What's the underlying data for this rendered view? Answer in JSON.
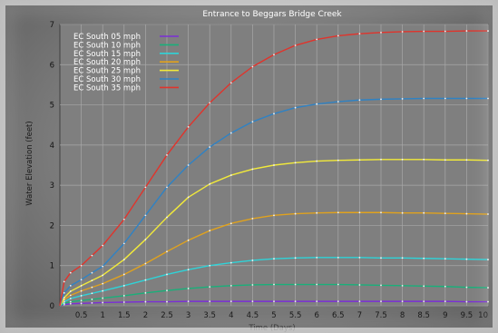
{
  "chart_data": {
    "type": "line",
    "title": "Entrance to Beggars Bridge Creek",
    "xlabel": "Time (Days)",
    "ylabel": "Water Elevation (feet)",
    "xlim": [
      0,
      10
    ],
    "ylim": [
      0,
      7
    ],
    "x_ticks": [
      "0.5",
      "1",
      "1.5",
      "2",
      "2.5",
      "3",
      "3.5",
      "4",
      "4.5",
      "5",
      "5.5",
      "6",
      "6.5",
      "7",
      "7.5",
      "8",
      "8.5",
      "9",
      "9.5",
      "10"
    ],
    "y_ticks": [
      "0",
      "1",
      "2",
      "3",
      "4",
      "5",
      "6",
      "7"
    ],
    "grid": true,
    "legend_position": "top-left",
    "x": [
      0,
      0.1,
      0.25,
      0.5,
      0.75,
      1,
      1.5,
      2,
      2.5,
      3,
      3.5,
      4,
      4.5,
      5,
      5.5,
      6,
      6.5,
      7,
      7.5,
      8,
      8.5,
      9,
      9.5,
      10
    ],
    "series": [
      {
        "name": "EC South 05 mph",
        "color": "#7b2fd6",
        "values": [
          0,
          0.03,
          0.05,
          0.06,
          0.07,
          0.08,
          0.09,
          0.1,
          0.1,
          0.11,
          0.11,
          0.11,
          0.11,
          0.11,
          0.11,
          0.11,
          0.11,
          0.11,
          0.11,
          0.11,
          0.11,
          0.11,
          0.1,
          0.1
        ]
      },
      {
        "name": "EC South 10 mph",
        "color": "#19b07a",
        "values": [
          0,
          0.06,
          0.1,
          0.13,
          0.16,
          0.19,
          0.25,
          0.32,
          0.38,
          0.43,
          0.47,
          0.5,
          0.52,
          0.53,
          0.53,
          0.53,
          0.53,
          0.52,
          0.51,
          0.5,
          0.49,
          0.48,
          0.46,
          0.45
        ]
      },
      {
        "name": "EC South 15 mph",
        "color": "#2fd3d8",
        "values": [
          0,
          0.1,
          0.18,
          0.25,
          0.31,
          0.37,
          0.5,
          0.64,
          0.78,
          0.9,
          1.0,
          1.07,
          1.13,
          1.17,
          1.19,
          1.2,
          1.2,
          1.2,
          1.19,
          1.19,
          1.18,
          1.17,
          1.16,
          1.15
        ]
      },
      {
        "name": "EC South 20 mph",
        "color": "#e0a21e",
        "values": [
          0,
          0.15,
          0.26,
          0.37,
          0.46,
          0.55,
          0.78,
          1.05,
          1.35,
          1.63,
          1.87,
          2.05,
          2.17,
          2.25,
          2.29,
          2.31,
          2.32,
          2.32,
          2.32,
          2.31,
          2.31,
          2.3,
          2.29,
          2.28
        ]
      },
      {
        "name": "EC South 25 mph",
        "color": "#f2ea3a",
        "values": [
          0,
          0.2,
          0.36,
          0.5,
          0.63,
          0.76,
          1.15,
          1.65,
          2.2,
          2.7,
          3.03,
          3.25,
          3.4,
          3.5,
          3.56,
          3.6,
          3.62,
          3.63,
          3.64,
          3.64,
          3.64,
          3.63,
          3.63,
          3.62
        ]
      },
      {
        "name": "EC South 30 mph",
        "color": "#2f82c4",
        "values": [
          0,
          0.32,
          0.5,
          0.65,
          0.82,
          0.98,
          1.55,
          2.25,
          2.95,
          3.5,
          3.95,
          4.3,
          4.58,
          4.78,
          4.93,
          5.02,
          5.08,
          5.12,
          5.14,
          5.15,
          5.16,
          5.16,
          5.16,
          5.16
        ]
      },
      {
        "name": "EC South 35 mph",
        "color": "#e0342c",
        "values": [
          0,
          0.6,
          0.82,
          1.0,
          1.25,
          1.5,
          2.15,
          2.95,
          3.75,
          4.45,
          5.05,
          5.55,
          5.95,
          6.25,
          6.48,
          6.63,
          6.72,
          6.77,
          6.8,
          6.82,
          6.83,
          6.83,
          6.84,
          6.84
        ]
      }
    ]
  }
}
